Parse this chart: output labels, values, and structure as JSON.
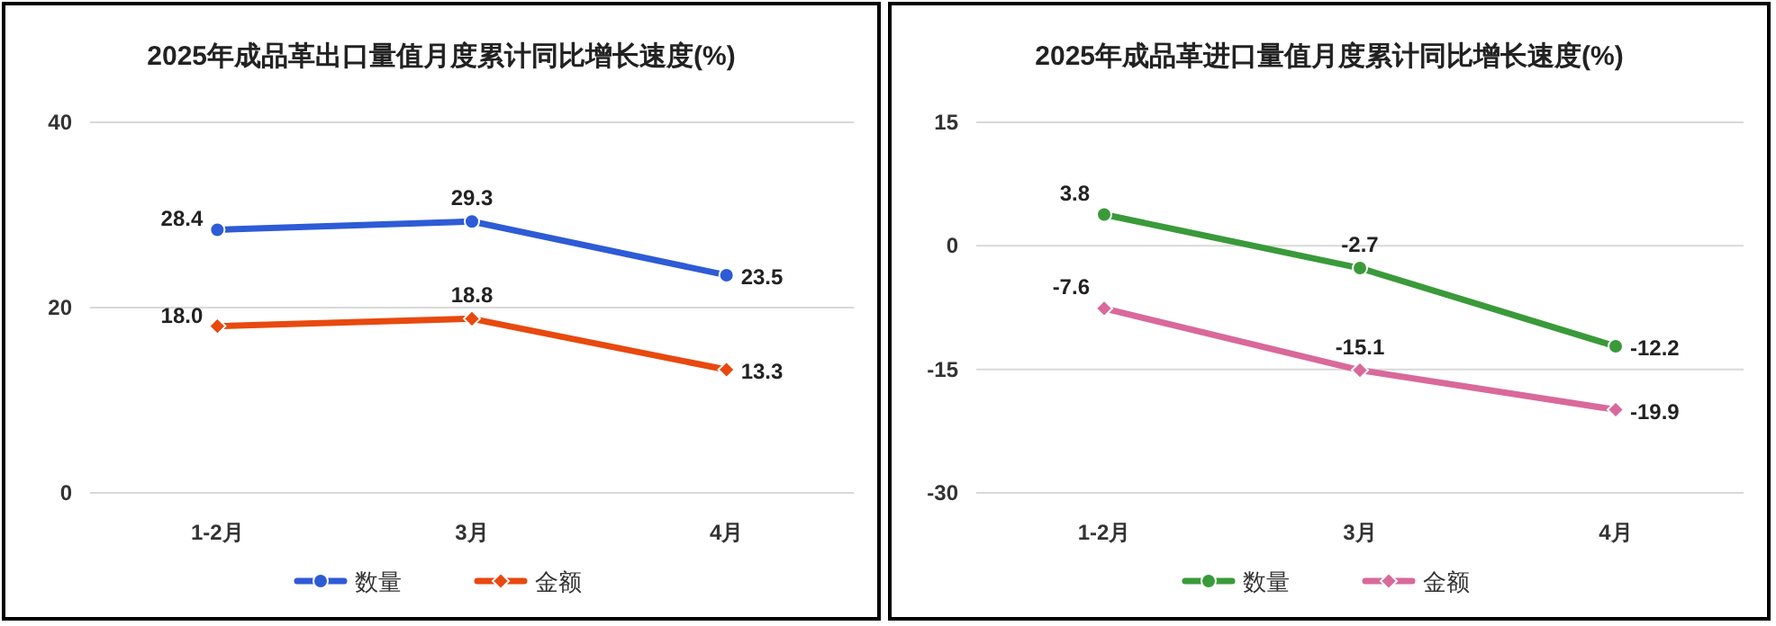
{
  "chart_data": [
    {
      "type": "line",
      "title": "2025年成品革出口量值月度累计同比增长速度(%)",
      "categories": [
        "1-2月",
        "3月",
        "4月"
      ],
      "series": [
        {
          "name": "数量",
          "color": "#2e5bd6",
          "marker": "circle",
          "values": [
            28.4,
            29.3,
            23.5
          ],
          "value_labels": [
            "28.4",
            "29.3",
            "23.5"
          ]
        },
        {
          "name": "金额",
          "color": "#e8490f",
          "marker": "diamond",
          "values": [
            18.0,
            18.8,
            13.3
          ],
          "value_labels": [
            "18.0",
            "18.8",
            "13.3"
          ]
        }
      ],
      "ylim": [
        0,
        40
      ],
      "yticks": [
        0,
        20,
        {
          "value": 40,
          "label": "40"
        }
      ],
      "grid": "y",
      "legend": "bottom"
    },
    {
      "type": "line",
      "title": "2025年成品革进口量值月度累计同比增长速度(%)",
      "categories": [
        "1-2月",
        "3月",
        "4月"
      ],
      "series": [
        {
          "name": "数量",
          "color": "#3a9a3a",
          "marker": "circle",
          "values": [
            3.8,
            -2.7,
            -12.2
          ]
        },
        {
          "name": "金额",
          "color": "#d9699a",
          "marker": "diamond",
          "values": [
            -7.6,
            -15.1,
            -19.9
          ]
        }
      ],
      "ylim": [
        -30,
        15
      ],
      "yticks": [
        -30,
        -15,
        0,
        15
      ],
      "grid": "y",
      "legend": "bottom",
      "data_labels": true
    }
  ]
}
